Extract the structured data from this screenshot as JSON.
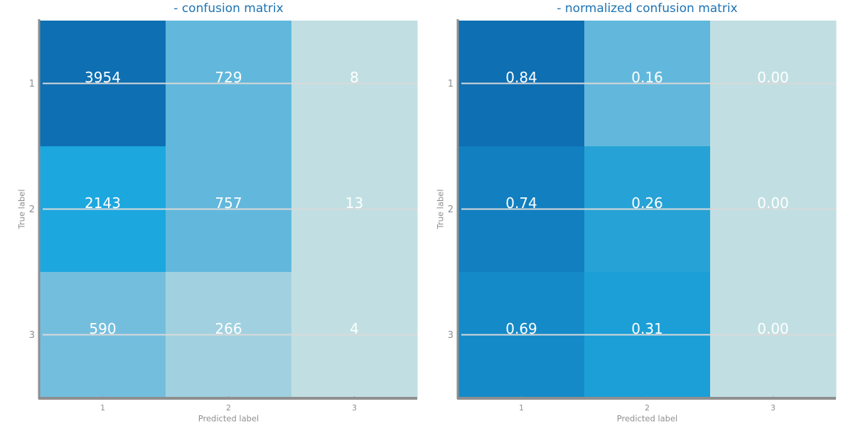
{
  "chart_data": [
    {
      "type": "heatmap",
      "title": "- confusion matrix",
      "xlabel": "Predicted label",
      "ylabel": "True label",
      "x_ticks": [
        "1",
        "2",
        "3"
      ],
      "y_ticks": [
        "1",
        "2",
        "3"
      ],
      "values": [
        [
          3954,
          729,
          8
        ],
        [
          2143,
          757,
          13
        ],
        [
          590,
          266,
          4
        ]
      ],
      "cell_labels": [
        [
          "3954",
          "729",
          "8"
        ],
        [
          "2143",
          "757",
          "13"
        ],
        [
          "590",
          "266",
          "4"
        ]
      ],
      "cell_colors": [
        [
          "#0e6fb2",
          "#62b8dc",
          "#c1dfe2"
        ],
        [
          "#1ca7df",
          "#62b8dc",
          "#c1dfe2"
        ],
        [
          "#74bedd",
          "#a1d1e0",
          "#c1dfe2"
        ]
      ]
    },
    {
      "type": "heatmap",
      "title": "- normalized confusion matrix",
      "xlabel": "Predicted label",
      "ylabel": "True label",
      "x_ticks": [
        "1",
        "2",
        "3"
      ],
      "y_ticks": [
        "1",
        "2",
        "3"
      ],
      "values": [
        [
          0.84,
          0.16,
          0.0
        ],
        [
          0.74,
          0.26,
          0.0
        ],
        [
          0.69,
          0.31,
          0.0
        ]
      ],
      "cell_labels": [
        [
          "0.84",
          "0.16",
          "0.00"
        ],
        [
          "0.74",
          "0.26",
          "0.00"
        ],
        [
          "0.69",
          "0.31",
          "0.00"
        ]
      ],
      "cell_colors": [
        [
          "#0e6fb2",
          "#62b8dc",
          "#c1dfe2"
        ],
        [
          "#117fc0",
          "#26a2d6",
          "#c1dfe2"
        ],
        [
          "#158ac9",
          "#1c9fd7",
          "#c1dfe2"
        ]
      ]
    }
  ],
  "colors": {
    "title": "#1c73b4",
    "axis": "#8f8f8f",
    "tick_text": "#8f8f8f",
    "grid": "#d9d9d9",
    "cell_text": "#ffffff"
  }
}
